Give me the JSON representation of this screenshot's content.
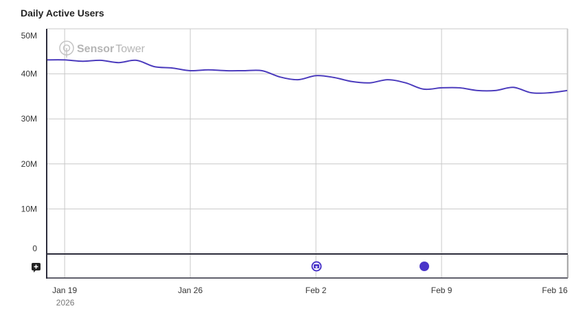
{
  "title": "Daily Active Users",
  "watermark": {
    "brand_bold": "Sensor",
    "brand_light": "Tower"
  },
  "colors": {
    "line": "#4b3bbd",
    "grid": "#c8c8c8",
    "axis": "#2b2b3a",
    "marker": "#4a35c9"
  },
  "y_axis": {
    "ticks": [
      "50M",
      "40M",
      "30M",
      "20M",
      "10M",
      "0"
    ]
  },
  "x_axis": {
    "ticks": [
      "Jan 19",
      "Jan 26",
      "Feb 2",
      "Feb 9",
      "Feb 16"
    ],
    "year": "2026"
  },
  "annotations": [
    {
      "type": "event-icon",
      "date": "Feb 2",
      "icon": "star-badge-icon"
    },
    {
      "type": "event-dot",
      "date": "Feb 7",
      "icon": "dot-icon"
    }
  ],
  "add_annotation_icon": "add-comment-icon",
  "chart_data": {
    "type": "line",
    "title": "Daily Active Users",
    "xlabel": "",
    "ylabel": "",
    "ylim": [
      0,
      50000000
    ],
    "grid": true,
    "legend": "none",
    "x": [
      "2026-01-18",
      "2026-01-19",
      "2026-01-20",
      "2026-01-21",
      "2026-01-22",
      "2026-01-23",
      "2026-01-24",
      "2026-01-25",
      "2026-01-26",
      "2026-01-27",
      "2026-01-28",
      "2026-01-29",
      "2026-01-30",
      "2026-01-31",
      "2026-02-01",
      "2026-02-02",
      "2026-02-03",
      "2026-02-04",
      "2026-02-05",
      "2026-02-06",
      "2026-02-07",
      "2026-02-08",
      "2026-02-09",
      "2026-02-10",
      "2026-02-11",
      "2026-02-12",
      "2026-02-13",
      "2026-02-14",
      "2026-02-15",
      "2026-02-16"
    ],
    "series": [
      {
        "name": "Daily Active Users",
        "values": [
          43.1,
          43.1,
          42.8,
          43.0,
          42.5,
          43.0,
          41.6,
          41.3,
          40.7,
          40.9,
          40.7,
          40.7,
          40.7,
          39.3,
          38.7,
          39.6,
          39.2,
          38.3,
          38.0,
          38.7,
          38.0,
          36.6,
          36.9,
          36.9,
          36.3,
          36.3,
          37.0,
          35.8,
          35.8,
          36.3
        ],
        "unit": "M"
      }
    ],
    "tick_labels_x": [
      "Jan 19",
      "Jan 26",
      "Feb 2",
      "Feb 9",
      "Feb 16"
    ],
    "tick_labels_y": [
      "0",
      "10M",
      "20M",
      "30M",
      "40M",
      "50M"
    ]
  }
}
